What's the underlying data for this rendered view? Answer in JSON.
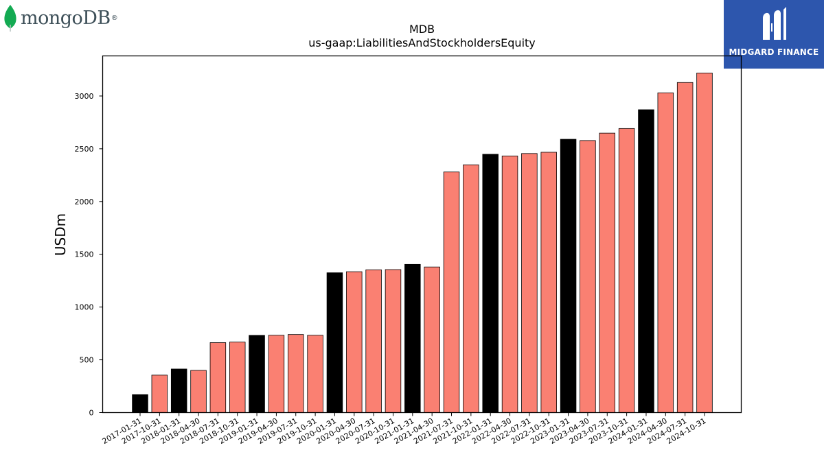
{
  "logos": {
    "left_wordmark": "mongoDB",
    "left_mark": "®",
    "left_icon": "leaf-icon",
    "right_brand": "MIDGARD FINANCE",
    "right_icon": "midgard-monogram-icon"
  },
  "colors": {
    "annual": "#000000",
    "quarterly": "#fa8072",
    "logo_right_bg": "#2d56ad",
    "leaf": "#13aa52"
  },
  "chart_data": {
    "type": "bar",
    "title": "MDB",
    "subtitle": "us-gaap:LiabilitiesAndStockholdersEquity",
    "xlabel": "",
    "ylabel": "USDm",
    "ylim": [
      0,
      3380
    ],
    "yticks": [
      0,
      500,
      1000,
      1500,
      2000,
      2500,
      3000
    ],
    "grid": false,
    "legend": "none",
    "categories": [
      "2017-01-31",
      "2017-10-31",
      "2018-01-31",
      "2018-04-30",
      "2018-07-31",
      "2018-10-31",
      "2019-01-31",
      "2019-04-30",
      "2019-07-31",
      "2019-10-31",
      "2020-01-31",
      "2020-04-30",
      "2020-07-31",
      "2020-10-31",
      "2021-01-31",
      "2021-04-30",
      "2021-07-31",
      "2021-10-31",
      "2022-01-31",
      "2022-04-30",
      "2022-07-31",
      "2022-10-31",
      "2023-01-31",
      "2023-04-30",
      "2023-07-31",
      "2023-10-31",
      "2024-01-31",
      "2024-04-30",
      "2024-07-31",
      "2024-10-31"
    ],
    "values": [
      170,
      355,
      413,
      400,
      663,
      668,
      732,
      733,
      740,
      733,
      1325,
      1335,
      1353,
      1355,
      1405,
      1380,
      2280,
      2348,
      2448,
      2432,
      2455,
      2467,
      2590,
      2578,
      2648,
      2692,
      2870,
      3030,
      3128,
      3218
    ],
    "annual_flags": [
      true,
      false,
      true,
      false,
      false,
      false,
      true,
      false,
      false,
      false,
      true,
      false,
      false,
      false,
      true,
      false,
      false,
      false,
      true,
      false,
      false,
      false,
      true,
      false,
      false,
      false,
      true,
      false,
      false,
      false
    ]
  }
}
